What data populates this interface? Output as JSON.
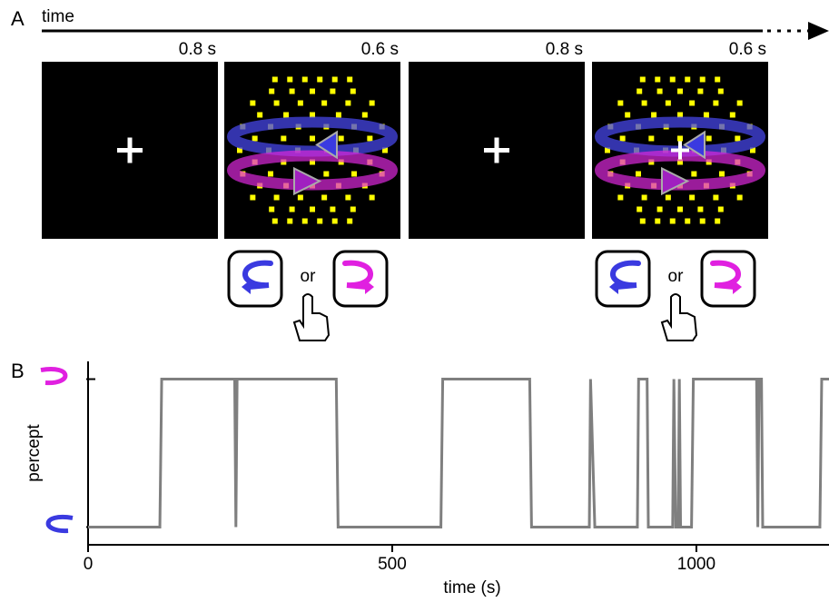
{
  "panel_a": {
    "label": "A",
    "timeline_label": "time",
    "durations": [
      "0.8 s",
      "0.6 s",
      "0.8 s",
      "0.6 s"
    ],
    "choice_words": [
      "or",
      "or"
    ]
  },
  "panel_b_label": "B",
  "chart_data": {
    "type": "line",
    "xlabel": "time (s)",
    "ylabel": "percept",
    "x": [
      0,
      118,
      121,
      241,
      243,
      245,
      408,
      411,
      580,
      583,
      726,
      729,
      824,
      826,
      833,
      903,
      905,
      919,
      921,
      961,
      963,
      966,
      970,
      972,
      974,
      992,
      995,
      1099,
      1101,
      1103,
      1107,
      1109,
      1203,
      1206,
      1218
    ],
    "values": [
      0,
      0,
      1,
      1,
      0,
      1,
      1,
      0,
      0,
      1,
      1,
      0,
      0,
      1,
      0,
      0,
      1,
      1,
      0,
      0,
      1,
      0,
      0,
      1,
      0,
      0,
      1,
      1,
      0,
      1,
      1,
      0,
      0,
      1,
      1
    ],
    "color": "#7f7f7f",
    "xlim": [
      0,
      1218
    ],
    "ylim": [
      -0.12,
      1.12
    ],
    "xticks": [
      0,
      500,
      1000
    ],
    "yticks": [
      0,
      1
    ]
  }
}
